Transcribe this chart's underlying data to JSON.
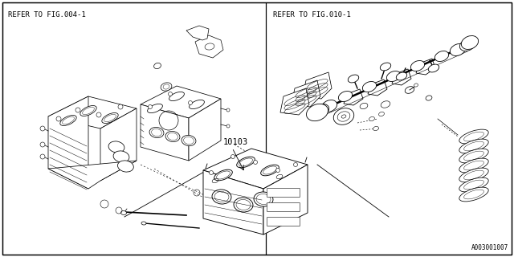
{
  "bg_color": "#ffffff",
  "line_color": "#000000",
  "text_color": "#000000",
  "fig_width": 6.4,
  "fig_height": 3.2,
  "dpi": 100,
  "ref_left": "REFER TO FIG.004-1",
  "ref_right": "REFER TO FIG.010-1",
  "part_number": "10103",
  "catalog_number": "A003001007"
}
